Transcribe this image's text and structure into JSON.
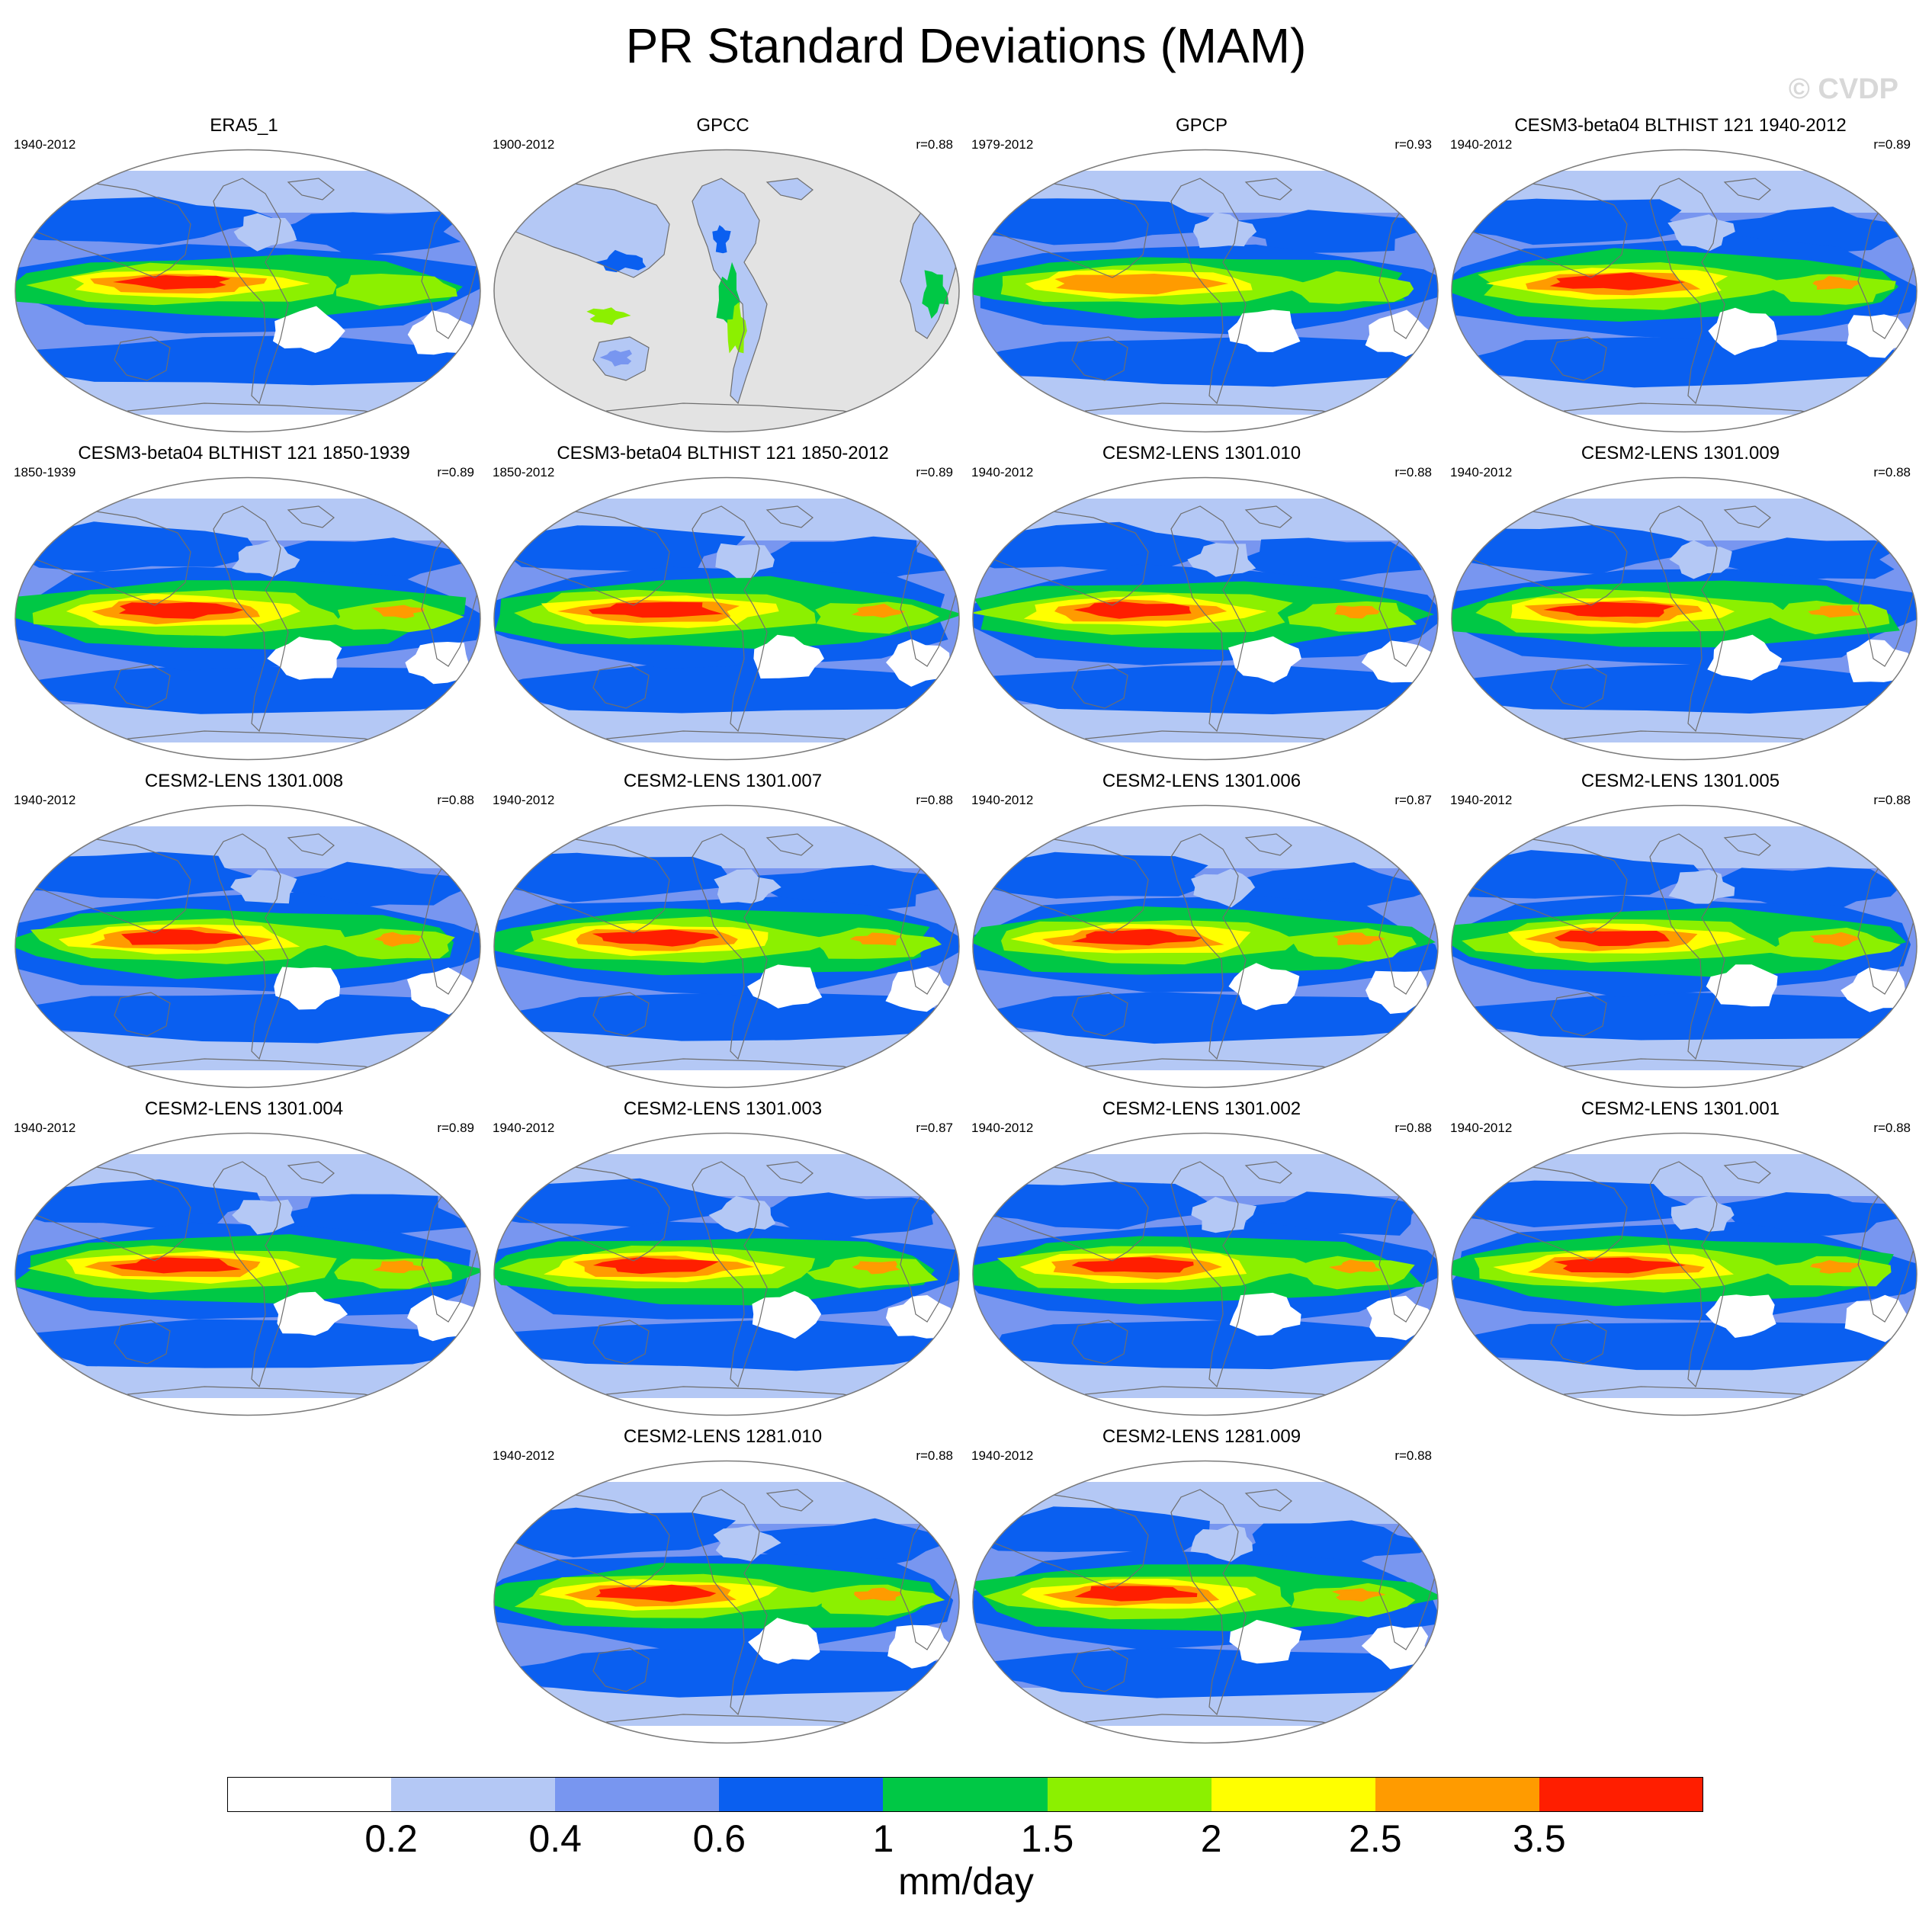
{
  "title": "PR Standard Deviations (MAM)",
  "watermark": "© CVDP",
  "colorbar": {
    "unit": "mm/day",
    "tick_labels": [
      "0.2",
      "0.4",
      "0.6",
      "1",
      "1.5",
      "2",
      "2.5",
      "3.5"
    ],
    "colors": [
      "#ffffff",
      "#b4c8f5",
      "#7896f0",
      "#0a5ff0",
      "#00c845",
      "#8cf000",
      "#ffff00",
      "#ff9b00",
      "#ff1e00"
    ]
  },
  "map_colors": {
    "ocean_bg": "#ffffff",
    "missing": "#e3e3e3",
    "coast": "#6e6e6e",
    "outline": "#7a7a7a"
  },
  "panels": [
    {
      "title": "ERA5_1",
      "period": "1940-2012",
      "r": "",
      "style": "era5"
    },
    {
      "title": "GPCC",
      "period": "1900-2012",
      "r": "r=0.88",
      "style": "gpcc"
    },
    {
      "title": "GPCP",
      "period": "1979-2012",
      "r": "r=0.93",
      "style": "gpcp"
    },
    {
      "title": "CESM3-beta04 BLTHIST 121 1940-2012",
      "period": "1940-2012",
      "r": "r=0.89",
      "style": "cesm3"
    },
    {
      "title": "CESM3-beta04 BLTHIST 121 1850-1939",
      "period": "1850-1939",
      "r": "r=0.89",
      "style": "cesm3"
    },
    {
      "title": "CESM3-beta04 BLTHIST 121 1850-2012",
      "period": "1850-2012",
      "r": "r=0.89",
      "style": "cesm3"
    },
    {
      "title": "CESM2-LENS 1301.010",
      "period": "1940-2012",
      "r": "r=0.88",
      "style": "cesm2"
    },
    {
      "title": "CESM2-LENS 1301.009",
      "period": "1940-2012",
      "r": "r=0.88",
      "style": "cesm2"
    },
    {
      "title": "CESM2-LENS 1301.008",
      "period": "1940-2012",
      "r": "r=0.88",
      "style": "cesm2"
    },
    {
      "title": "CESM2-LENS 1301.007",
      "period": "1940-2012",
      "r": "r=0.88",
      "style": "cesm2"
    },
    {
      "title": "CESM2-LENS 1301.006",
      "period": "1940-2012",
      "r": "r=0.87",
      "style": "cesm2"
    },
    {
      "title": "CESM2-LENS 1301.005",
      "period": "1940-2012",
      "r": "r=0.88",
      "style": "cesm2"
    },
    {
      "title": "CESM2-LENS 1301.004",
      "period": "1940-2012",
      "r": "r=0.89",
      "style": "cesm2"
    },
    {
      "title": "CESM2-LENS 1301.003",
      "period": "1940-2012",
      "r": "r=0.87",
      "style": "cesm2"
    },
    {
      "title": "CESM2-LENS 1301.002",
      "period": "1940-2012",
      "r": "r=0.88",
      "style": "cesm2"
    },
    {
      "title": "CESM2-LENS 1301.001",
      "period": "1940-2012",
      "r": "r=0.88",
      "style": "cesm2"
    },
    {
      "title": "CESM2-LENS 1281.010",
      "period": "1940-2012",
      "r": "r=0.88",
      "style": "cesm2"
    },
    {
      "title": "CESM2-LENS 1281.009",
      "period": "1940-2012",
      "r": "r=0.88",
      "style": "cesm2"
    }
  ]
}
